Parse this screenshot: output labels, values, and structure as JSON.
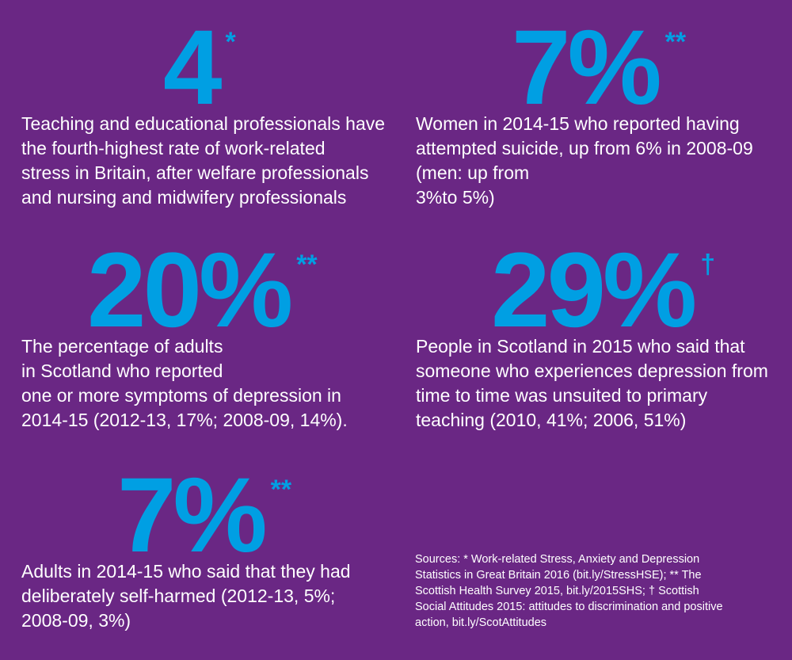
{
  "stats": [
    {
      "value": "4",
      "mark": "*",
      "text": "Teaching and educational professionals have\nthe fourth-highest rate of work-related\nstress in Britain, after welfare professionals\nand nursing and midwifery professionals"
    },
    {
      "value": "7%",
      "mark": "**",
      "text": "Women in 2014-15 who reported having\nattempted suicide, up from 6% in 2008-09\n(men: up from\n3%to 5%)"
    },
    {
      "value": "20%",
      "mark": "**",
      "text": "The percentage of adults\nin Scotland who reported\none or more symptoms of depression in\n2014-15 (2012-13, 17%; 2008-09, 14%)."
    },
    {
      "value": "29%",
      "mark": "†",
      "text": "People in Scotland in 2015 who said that\nsomeone who experiences depression from\ntime to time was unsuited to primary\nteaching (2010, 41%; 2006, 51%)"
    },
    {
      "value": "7%",
      "mark": "**",
      "text": "Adults in 2014-15 who said that they had\ndeliberately self-harmed (2012-13, 5%;\n2008-09, 3%)"
    }
  ],
  "sources": "Sources: * Work-related Stress, Anxiety and Depression Statistics in Great Britain 2016 (bit.ly/StressHSE); ** The Scottish Health Survey 2015, bit.ly/2015SHS; † Scottish Social Attitudes 2015: attitudes to discrimination and positive action, bit.ly/ScotAttitudes",
  "colors": {
    "background": "#6a2784",
    "accent": "#009fe3",
    "text": "#ffffff"
  }
}
